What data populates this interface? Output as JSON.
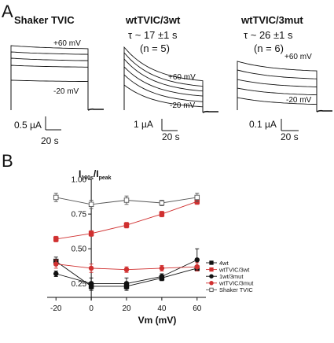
{
  "panel_a": {
    "letter": "A",
    "panels": [
      {
        "title": "Shaker TVIC",
        "tau": "",
        "n": "",
        "top_label": "+60 mV",
        "bottom_label": "-20 mV",
        "scale_current": "0.5 µA",
        "scale_time": "20 s"
      },
      {
        "title": "wtTVIC/3wt",
        "tau": "τ ~ 17 ±1 s",
        "n": "(n = 5)",
        "top_label": "+60 mV",
        "bottom_label": "-20 mV",
        "scale_current": "1 µA",
        "scale_time": "20 s"
      },
      {
        "title": "wtTVIC/3mut",
        "tau": "τ ~ 26 ±1 s",
        "n": "(n = 6)",
        "top_label": "+60 mV",
        "bottom_label": "-20 mV",
        "scale_current": "0.1 µA",
        "scale_time": "20 s"
      }
    ]
  },
  "panel_b": {
    "letter": "B"
  },
  "chart_data": {
    "type": "line",
    "title": "",
    "xlabel": "Vm (mV)",
    "ylabel_main": "I",
    "ylabel_sub": "100s",
    "ylabel_div": "/I",
    "ylabel_sub2": "peak",
    "x": [
      -20,
      0,
      20,
      40,
      60
    ],
    "xlim": [
      -25,
      65
    ],
    "ylim": [
      0.15,
      1.0
    ],
    "xticks": [
      "-20",
      "0",
      "20",
      "40",
      "60"
    ],
    "yticks": [
      {
        "value": 0.25,
        "label": "0.25"
      },
      {
        "value": 0.5,
        "label": "0.50"
      },
      {
        "value": 0.75,
        "label": "0.75"
      },
      {
        "value": 1.0,
        "label": "1.00"
      }
    ],
    "legend_position": "right",
    "series": [
      {
        "name": "4wt",
        "values": [
          0.41,
          0.23,
          0.23,
          0.29,
          0.36
        ],
        "err": [
          0.03,
          0.03,
          0.03,
          0.02,
          0.02
        ],
        "color": "#111111",
        "marker": "square",
        "filled": true
      },
      {
        "name": "wtTVIC/3wt",
        "values": [
          0.57,
          0.61,
          0.67,
          0.75,
          0.84
        ],
        "err": [
          0.02,
          0.02,
          0.02,
          0.02,
          0.02
        ],
        "color": "#d03030",
        "marker": "square",
        "filled": true
      },
      {
        "name": "1wt/3mut",
        "values": [
          0.32,
          0.25,
          0.25,
          0.3,
          0.42
        ],
        "err": [
          0.02,
          0.04,
          0.04,
          0.02,
          0.08
        ],
        "color": "#111111",
        "marker": "circle",
        "filled": true
      },
      {
        "name": "wtTVIC/3mut",
        "values": [
          0.39,
          0.36,
          0.35,
          0.36,
          0.37
        ],
        "err": [
          0.03,
          0.03,
          0.02,
          0.02,
          0.03
        ],
        "color": "#d03030",
        "marker": "circle",
        "filled": true
      },
      {
        "name": "Shaker TVIC",
        "values": [
          0.87,
          0.82,
          0.85,
          0.83,
          0.87
        ],
        "err": [
          0.03,
          0.03,
          0.03,
          0.02,
          0.03
        ],
        "color": "#555555",
        "marker": "square",
        "filled": false
      }
    ]
  }
}
